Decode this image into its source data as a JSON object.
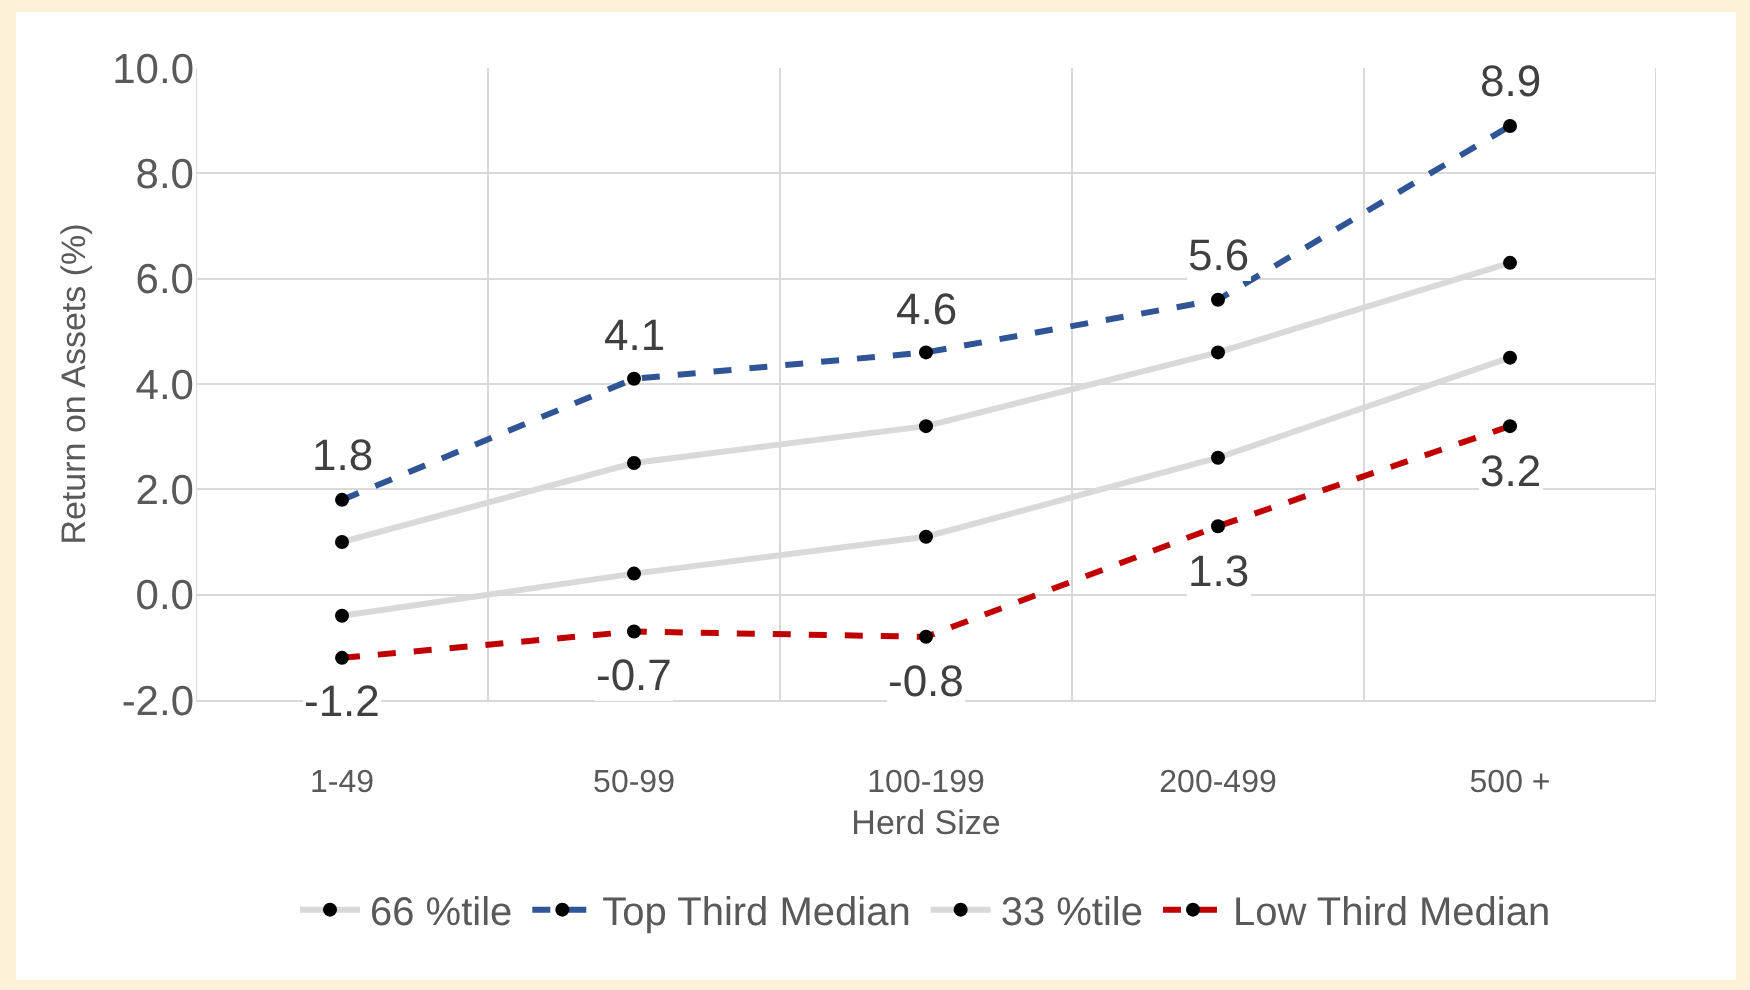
{
  "chart_data": {
    "type": "line",
    "xlabel": "Herd Size",
    "ylabel": "Return on Assets (%)",
    "categories": [
      "1-49",
      "50-99",
      "100-199",
      "200-499",
      "500 +"
    ],
    "series": [
      {
        "name": "66 %tile",
        "color": "#d9d9d9",
        "line_style": "solid",
        "values": [
          1.0,
          2.5,
          3.2,
          4.6,
          6.3
        ]
      },
      {
        "name": "Top Third Median",
        "color": "#2f5597",
        "line_style": "dashed",
        "values": [
          1.8,
          4.1,
          4.6,
          5.6,
          8.9
        ],
        "value_labels": [
          "1.8",
          "4.1",
          "4.6",
          "5.6",
          "8.9"
        ]
      },
      {
        "name": "33 %tile",
        "color": "#d9d9d9",
        "line_style": "solid",
        "values": [
          -0.4,
          0.4,
          1.1,
          2.6,
          4.5
        ]
      },
      {
        "name": "Low Third Median",
        "color": "#c00000",
        "line_style": "dashed",
        "values": [
          -1.2,
          -0.7,
          -0.8,
          1.3,
          3.2
        ],
        "value_labels": [
          "-1.2",
          "-0.7",
          "-0.8",
          "1.3",
          "3.2"
        ]
      }
    ],
    "ylim": [
      -2,
      10
    ],
    "yticks": [
      {
        "value": -2,
        "label": "-2.0"
      },
      {
        "value": 0,
        "label": "0.0"
      },
      {
        "value": 2,
        "label": "2.0"
      },
      {
        "value": 4,
        "label": "4.0"
      },
      {
        "value": 6,
        "label": "6.0"
      },
      {
        "value": 8,
        "label": "8.0"
      },
      {
        "value": 10,
        "label": "10.0"
      }
    ],
    "grid": true,
    "legend": "bottom",
    "marker": "circle"
  }
}
